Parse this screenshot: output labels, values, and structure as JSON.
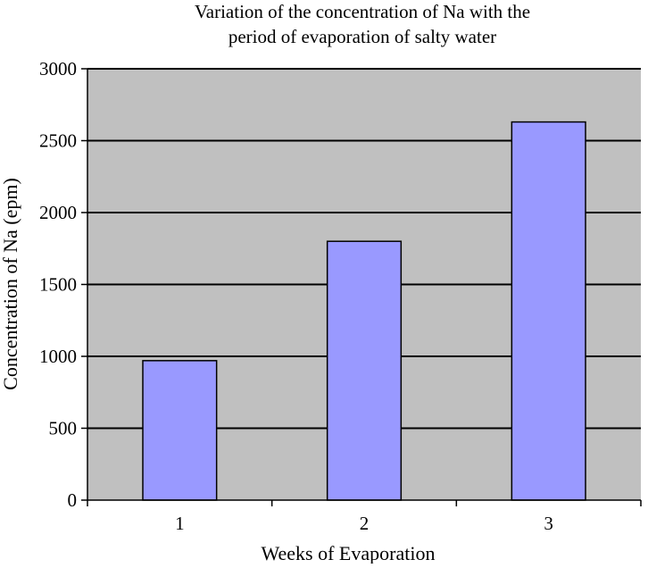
{
  "chart_data": {
    "type": "bar",
    "title_lines": [
      "Variation of the concentration of Na with the",
      "period of evaporation of salty water"
    ],
    "categories": [
      "1",
      "2",
      "3"
    ],
    "values": [
      970,
      1800,
      2630
    ],
    "xlabel": "Weeks of Evaporation",
    "ylabel": "Concentration of  Na (epm)",
    "ylim": [
      0,
      3000
    ],
    "yticks": [
      0,
      500,
      1000,
      1500,
      2000,
      2500,
      3000
    ],
    "grid": true,
    "legend": "none",
    "colors": {
      "bar": "#9999ff",
      "plot_background": "#c0c0c0",
      "gridline": "#000000"
    }
  }
}
